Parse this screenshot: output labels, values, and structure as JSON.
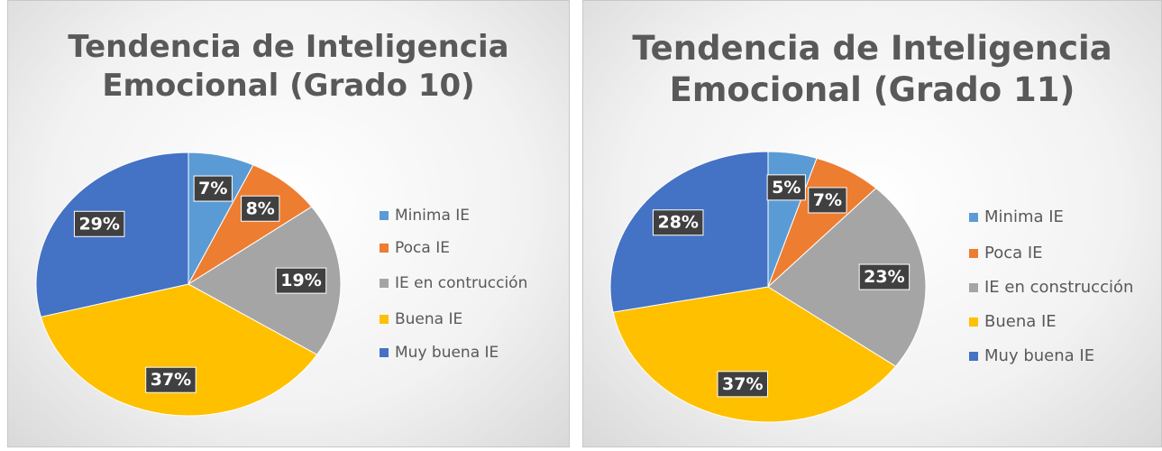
{
  "chart_data": [
    {
      "type": "pie",
      "title": "Tendencia de Inteligencia Emocional (Grado 10)",
      "categories": [
        "Minima IE",
        "Poca IE",
        "IE en contrucción",
        "Buena IE",
        "Muy buena IE"
      ],
      "values": [
        7,
        8,
        19,
        37,
        29
      ],
      "value_labels": [
        "7%",
        "8%",
        "19%",
        "37%",
        "29%"
      ],
      "colors": [
        "#5b9bd5",
        "#ed7d31",
        "#a5a5a5",
        "#ffc000",
        "#4472c4"
      ],
      "legend": "right"
    },
    {
      "type": "pie",
      "title": "Tendencia de Inteligencia Emocional (Grado 11)",
      "categories": [
        "Minima IE",
        "Poca IE",
        "IE en construcción",
        "Buena IE",
        "Muy buena IE"
      ],
      "values": [
        5,
        7,
        23,
        37,
        28
      ],
      "value_labels": [
        "5%",
        "7%",
        "23%",
        "37%",
        "28%"
      ],
      "colors": [
        "#5b9bd5",
        "#ed7d31",
        "#a5a5a5",
        "#ffc000",
        "#4472c4"
      ],
      "legend": "right"
    }
  ]
}
